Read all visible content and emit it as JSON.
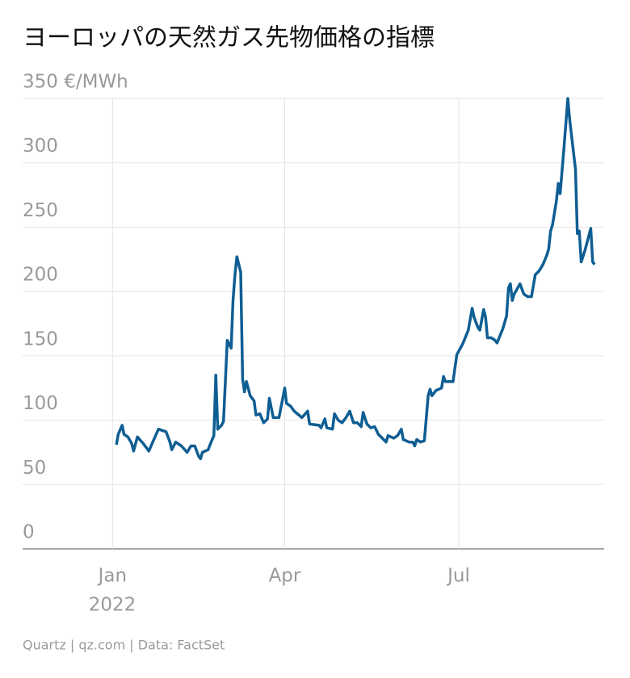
{
  "chart_data": {
    "type": "line",
    "title": "ヨーロッパの天然ガス先物価格の指標",
    "source": "Quartz | qz.com | Data: FactSet",
    "x_axis_year": "2022",
    "x": [
      2,
      3,
      5,
      6,
      8,
      10,
      11,
      13,
      16,
      19,
      21,
      24,
      26,
      28,
      30,
      31,
      33,
      36,
      39,
      41,
      43,
      45,
      46,
      47,
      50,
      51,
      53,
      54,
      55,
      57,
      58,
      60,
      62,
      63,
      64,
      65,
      67,
      68,
      69,
      70,
      72,
      74,
      75,
      77,
      79,
      81,
      82,
      84,
      87,
      89,
      90,
      91,
      93,
      95,
      99,
      102,
      103,
      108,
      109,
      111,
      112,
      115,
      116,
      118,
      120,
      122,
      124,
      126,
      128,
      130,
      131,
      133,
      135,
      137,
      139,
      141,
      143,
      144,
      147,
      149,
      151,
      152,
      155,
      157,
      158,
      159,
      161,
      163,
      165,
      166,
      167,
      169,
      172,
      173,
      174,
      177,
      178,
      180,
      183,
      186,
      188,
      189,
      191,
      192,
      194,
      195,
      196,
      198,
      200,
      201,
      204,
      206,
      207,
      208,
      209,
      210,
      213,
      215,
      217,
      219,
      221,
      223,
      225,
      227,
      228,
      229,
      230,
      232,
      233,
      234,
      236,
      238,
      239,
      242,
      243,
      244,
      245,
      247,
      250,
      251,
      252
    ],
    "values": [
      81,
      89,
      96,
      89,
      87,
      82,
      76,
      87,
      82,
      76,
      83,
      93,
      92,
      91,
      83,
      77,
      83,
      80,
      75,
      80,
      80,
      72,
      70,
      75,
      77,
      81,
      88,
      135,
      93,
      96,
      99,
      162,
      156,
      193,
      213,
      227,
      215,
      132,
      122,
      130,
      119,
      115,
      104,
      105,
      98,
      101,
      117,
      102,
      102,
      117,
      125,
      113,
      111,
      107,
      102,
      107,
      97,
      96,
      94,
      101,
      94,
      93,
      105,
      100,
      98,
      102,
      107,
      98,
      98,
      95,
      106,
      97,
      94,
      95,
      89,
      86,
      83,
      88,
      86,
      88,
      93,
      85,
      83,
      83,
      80,
      85,
      83,
      84,
      119,
      124,
      119,
      123,
      125,
      134,
      130,
      130,
      130,
      151,
      159,
      170,
      187,
      180,
      172,
      170,
      186,
      180,
      164,
      164,
      162,
      160,
      171,
      181,
      203,
      206,
      193,
      198,
      206,
      198,
      196,
      196,
      213,
      216,
      221,
      228,
      233,
      247,
      252,
      270,
      284,
      276,
      312,
      350,
      333,
      295,
      245,
      247,
      223,
      232,
      249,
      223,
      221
    ],
    "color": "#0f5e93",
    "xlim": [
      -47,
      257
    ],
    "xticks": [
      {
        "value": 0,
        "label": "Jan"
      },
      {
        "value": 90,
        "label": "Apr"
      },
      {
        "value": 181,
        "label": "Jul"
      }
    ],
    "ylim": [
      0,
      350
    ],
    "yticks": [
      0,
      50,
      100,
      150,
      200,
      250,
      300,
      {
        "value": 350,
        "label": "350 €/MWh"
      }
    ],
    "grid": true
  }
}
